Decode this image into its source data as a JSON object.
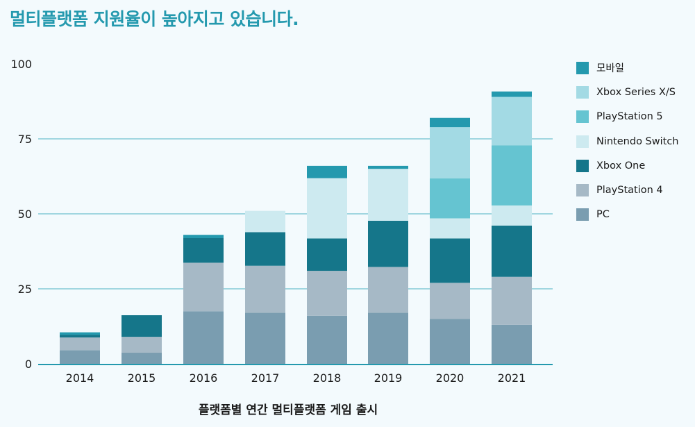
{
  "title": "멀티플랫폼 지원율이 높아지고 있습니다.",
  "chart_data": {
    "type": "bar",
    "stacked": true,
    "categories": [
      "2014",
      "2015",
      "2016",
      "2017",
      "2018",
      "2019",
      "2020",
      "2021"
    ],
    "xlabel": "플랫폼별 연간 멀티플랫폼 게임 출시",
    "ylabel": "",
    "ylim": [
      0,
      100
    ],
    "yticks": [
      0,
      25,
      50,
      75,
      100
    ],
    "grid": true,
    "legend_position": "right",
    "series": [
      {
        "name": "PC",
        "color": "#7a9db0",
        "values": [
          4.5,
          3.7,
          17.5,
          17.0,
          16.0,
          17.0,
          15.0,
          13.0
        ]
      },
      {
        "name": "PlayStation 4",
        "color": "#a6b9c6",
        "values": [
          4.3,
          5.3,
          16.2,
          15.7,
          15.0,
          15.3,
          12.0,
          16.0
        ]
      },
      {
        "name": "Xbox One",
        "color": "#15768a",
        "values": [
          0.9,
          7.2,
          8.2,
          11.2,
          10.8,
          15.4,
          14.8,
          17.1
        ]
      },
      {
        "name": "Nintendo Switch",
        "color": "#cdeaf0",
        "values": [
          0,
          0,
          0,
          7.1,
          20.1,
          17.3,
          6.7,
          6.7
        ]
      },
      {
        "name": "PlayStation 5",
        "color": "#65c4d1",
        "values": [
          0,
          0,
          0,
          0,
          0,
          0,
          13.3,
          20.0
        ]
      },
      {
        "name": "Xbox Series X/S",
        "color": "#a3dae4",
        "values": [
          0,
          0,
          0,
          0,
          0,
          0,
          17.1,
          16.2
        ]
      },
      {
        "name": "모바일",
        "color": "#2499ae",
        "values": [
          0.8,
          0,
          1.1,
          0,
          4.1,
          1.0,
          3.1,
          1.8
        ]
      }
    ]
  }
}
